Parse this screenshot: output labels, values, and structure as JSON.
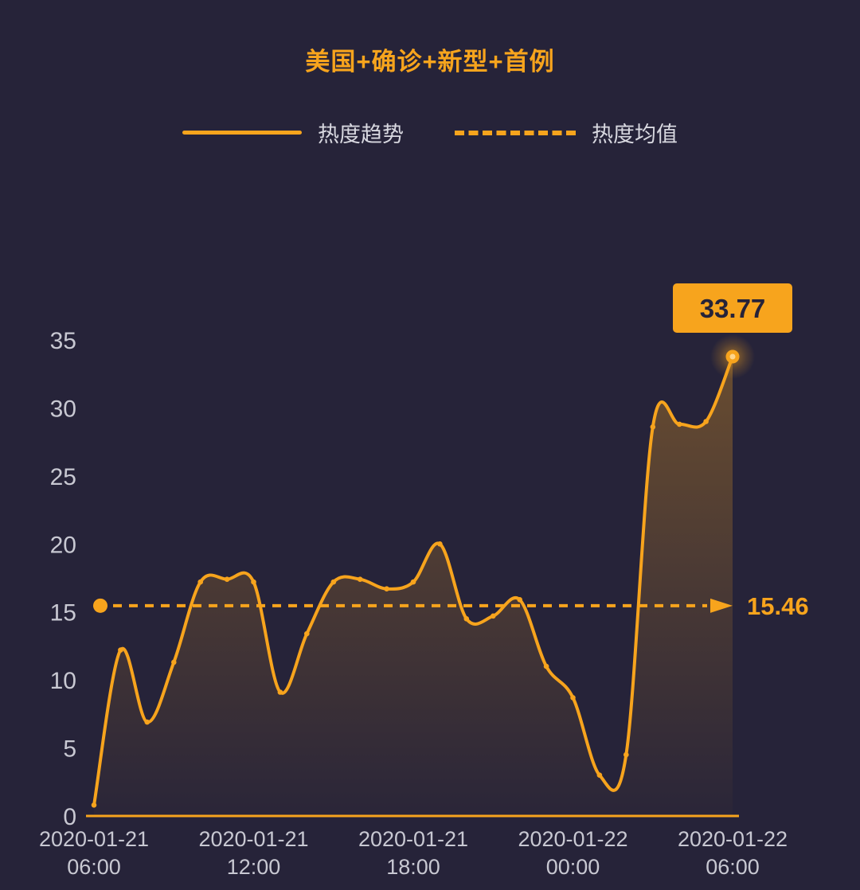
{
  "title": "美国+确诊+新型+首例",
  "legend": {
    "trend": {
      "label": "热度趋势",
      "style": "solid"
    },
    "average": {
      "label": "热度均值",
      "style": "dashed"
    }
  },
  "colors": {
    "background": "#262339",
    "accent": "#F7A41D",
    "axis_text": "#C8C8D2",
    "legend_text": "#D8D8E0",
    "endpoint_label_text": "#262339"
  },
  "chart_data": {
    "type": "line",
    "title": "美国+确诊+新型+首例",
    "x_start": "2020-01-21 06:00",
    "x_end": "2020-01-22 06:00",
    "x_interval_hours": 1,
    "x_tick_labels": [
      {
        "date": "2020-01-21",
        "time": "06:00"
      },
      {
        "date": "2020-01-21",
        "time": "12:00"
      },
      {
        "date": "2020-01-21",
        "time": "18:00"
      },
      {
        "date": "2020-01-22",
        "time": "00:00"
      },
      {
        "date": "2020-01-22",
        "time": "06:00"
      }
    ],
    "y_ticks": [
      0,
      5,
      10,
      15,
      20,
      25,
      30,
      35
    ],
    "ylim": [
      0,
      35
    ],
    "grid": false,
    "legend_position": "top",
    "series": [
      {
        "name": "热度趋势",
        "values": [
          0.8,
          12.2,
          6.9,
          11.3,
          17.2,
          17.4,
          17.2,
          9.1,
          13.4,
          17.2,
          17.4,
          16.7,
          17.2,
          20.0,
          14.5,
          14.7,
          15.9,
          11.0,
          8.7,
          3.0,
          4.5,
          28.6,
          28.8,
          29.0,
          33.77
        ]
      }
    ],
    "average": {
      "name": "热度均值",
      "value": 15.46,
      "label": "15.46"
    },
    "endpoint": {
      "value": 33.77,
      "label": "33.77"
    }
  }
}
